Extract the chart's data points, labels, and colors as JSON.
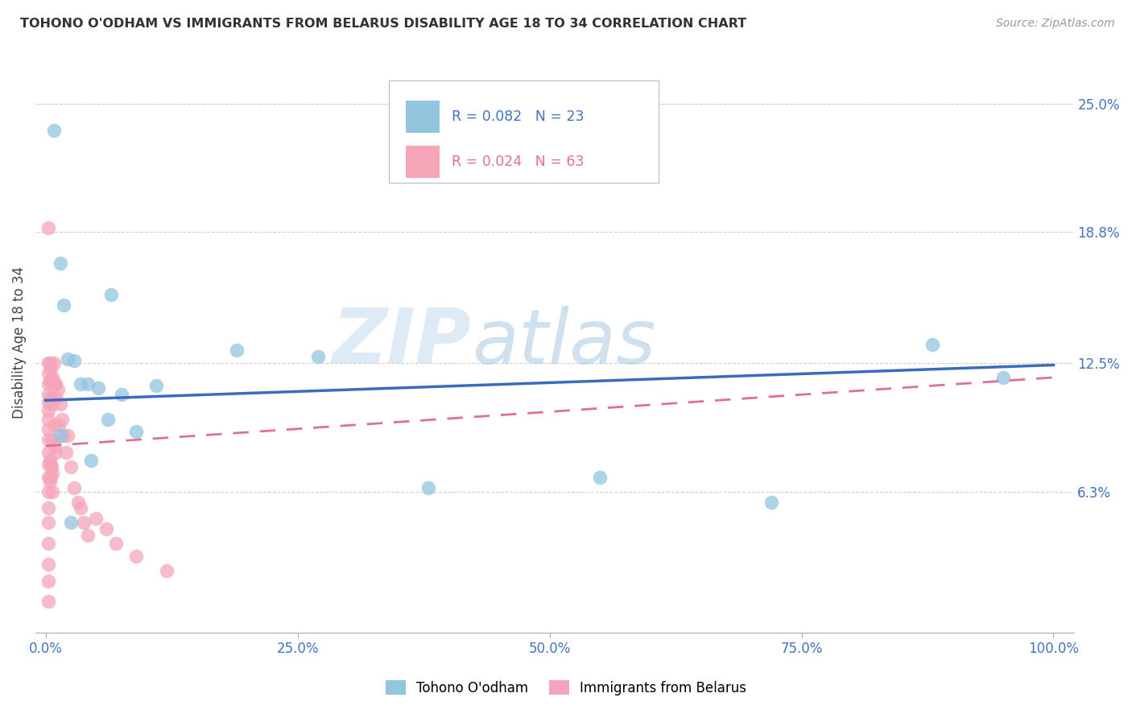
{
  "title": "TOHONO O'ODHAM VS IMMIGRANTS FROM BELARUS DISABILITY AGE 18 TO 34 CORRELATION CHART",
  "source": "Source: ZipAtlas.com",
  "ylabel": "Disability Age 18 to 34",
  "watermark_zip": "ZIP",
  "watermark_atlas": "atlas",
  "legend_blue_R": "R = 0.082",
  "legend_blue_N": "N = 23",
  "legend_pink_R": "R = 0.024",
  "legend_pink_N": "N = 63",
  "blue_color": "#92c5de",
  "pink_color": "#f4a6b8",
  "blue_line_color": "#3a6bbf",
  "pink_line_color": "#e07090",
  "legend_text_blue": "#4472c4",
  "legend_text_pink": "#e07090",
  "ytick_labels": [
    "25.0%",
    "18.8%",
    "12.5%",
    "6.3%"
  ],
  "ytick_values": [
    0.25,
    0.188,
    0.125,
    0.063
  ],
  "xtick_labels": [
    "0.0%",
    "25.0%",
    "50.0%",
    "75.0%",
    "100.0%"
  ],
  "xtick_values": [
    0.0,
    0.25,
    0.5,
    0.75,
    1.0
  ],
  "blue_x": [
    0.008,
    0.015,
    0.018,
    0.022,
    0.028,
    0.035,
    0.042,
    0.052,
    0.062,
    0.075,
    0.09,
    0.11,
    0.19,
    0.27,
    0.38,
    0.55,
    0.72,
    0.88,
    0.95,
    0.065,
    0.025,
    0.015,
    0.045
  ],
  "blue_y": [
    0.237,
    0.173,
    0.153,
    0.127,
    0.126,
    0.115,
    0.115,
    0.113,
    0.098,
    0.11,
    0.092,
    0.114,
    0.131,
    0.128,
    0.065,
    0.07,
    0.058,
    0.134,
    0.118,
    0.158,
    0.048,
    0.09,
    0.078
  ],
  "pink_x": [
    0.003,
    0.003,
    0.003,
    0.003,
    0.003,
    0.003,
    0.003,
    0.003,
    0.003,
    0.003,
    0.003,
    0.003,
    0.003,
    0.003,
    0.003,
    0.003,
    0.003,
    0.003,
    0.003,
    0.003,
    0.004,
    0.004,
    0.004,
    0.004,
    0.004,
    0.005,
    0.005,
    0.005,
    0.006,
    0.006,
    0.006,
    0.007,
    0.007,
    0.007,
    0.008,
    0.008,
    0.009,
    0.009,
    0.01,
    0.01,
    0.011,
    0.012,
    0.013,
    0.015,
    0.016,
    0.018,
    0.02,
    0.022,
    0.025,
    0.028,
    0.032,
    0.035,
    0.038,
    0.042,
    0.05,
    0.06,
    0.07,
    0.09,
    0.12,
    0.008,
    0.005,
    0.006,
    0.007
  ],
  "pink_y": [
    0.19,
    0.125,
    0.12,
    0.115,
    0.11,
    0.106,
    0.102,
    0.098,
    0.093,
    0.088,
    0.082,
    0.076,
    0.07,
    0.063,
    0.055,
    0.048,
    0.038,
    0.028,
    0.02,
    0.01,
    0.125,
    0.116,
    0.108,
    0.078,
    0.068,
    0.122,
    0.108,
    0.076,
    0.117,
    0.107,
    0.075,
    0.118,
    0.105,
    0.072,
    0.115,
    0.095,
    0.115,
    0.085,
    0.115,
    0.082,
    0.108,
    0.112,
    0.095,
    0.105,
    0.098,
    0.09,
    0.082,
    0.09,
    0.075,
    0.065,
    0.058,
    0.055,
    0.048,
    0.042,
    0.05,
    0.045,
    0.038,
    0.032,
    0.025,
    0.125,
    0.07,
    0.088,
    0.063
  ],
  "blue_trend_x": [
    0.0,
    1.0
  ],
  "blue_trend_y": [
    0.107,
    0.124
  ],
  "pink_trend_x": [
    0.0,
    1.0
  ],
  "pink_trend_y": [
    0.085,
    0.118
  ],
  "ylim": [
    -0.005,
    0.275
  ],
  "xlim": [
    -0.01,
    1.02
  ],
  "background_color": "#ffffff",
  "grid_color": "#d0d0d0",
  "axis_color": "#888888",
  "tick_label_color": "#4472c4"
}
